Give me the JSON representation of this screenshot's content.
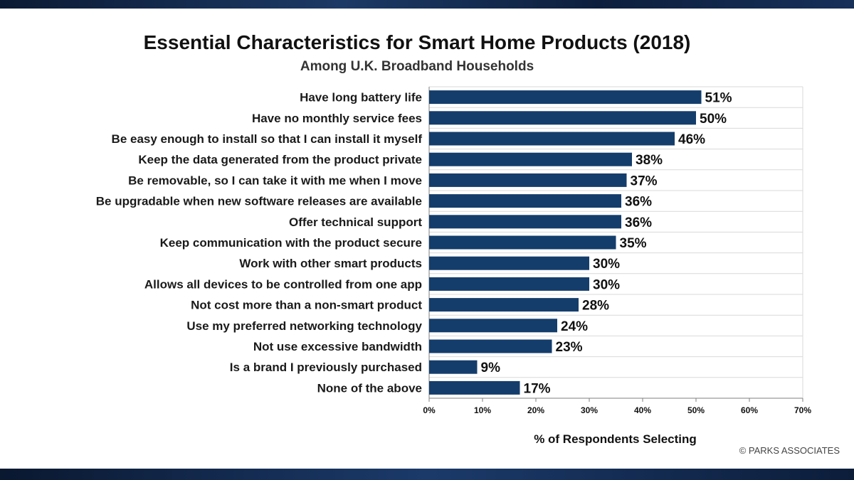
{
  "header": {
    "title": "Essential Characteristics for Smart Home Products (2018)",
    "subtitle": "Among U.K. Broadband Households"
  },
  "footer": {
    "copyright": "© PARKS ASSOCIATES"
  },
  "colors": {
    "bar": "#143d6b",
    "grid": "#d9d9d9",
    "axis": "#7f7f7f"
  },
  "chart_data": {
    "type": "bar",
    "orientation": "horizontal",
    "title": "Essential Characteristics for Smart Home Products (2018)",
    "subtitle": "Among U.K. Broadband Households",
    "xlabel": "% of Respondents Selecting",
    "ylabel": "",
    "xlim": [
      0,
      70
    ],
    "xticks": [
      0,
      10,
      20,
      30,
      40,
      50,
      60,
      70
    ],
    "xtick_labels": [
      "0%",
      "10%",
      "20%",
      "30%",
      "40%",
      "50%",
      "60%",
      "70%"
    ],
    "grid": "horizontal",
    "legend": "none",
    "categories": [
      "Have long battery life",
      "Have no monthly service fees",
      "Be easy enough to install so that I can install it myself",
      "Keep the data generated from the product private",
      "Be removable, so I can take it with me when I move",
      "Be upgradable when new software releases are available",
      "Offer technical support",
      "Keep communication with the product secure",
      "Work with other smart products",
      "Allows all devices to be controlled from one app",
      "Not cost more than a non-smart product",
      "Use my preferred networking technology",
      "Not use excessive bandwidth",
      "Is a brand I previously purchased",
      "None of the above"
    ],
    "values": [
      51,
      50,
      46,
      38,
      37,
      36,
      36,
      35,
      30,
      30,
      28,
      24,
      23,
      9,
      17
    ],
    "data_labels": [
      "51%",
      "50%",
      "46%",
      "38%",
      "37%",
      "36%",
      "36%",
      "35%",
      "30%",
      "30%",
      "28%",
      "24%",
      "23%",
      "9%",
      "17%"
    ]
  }
}
